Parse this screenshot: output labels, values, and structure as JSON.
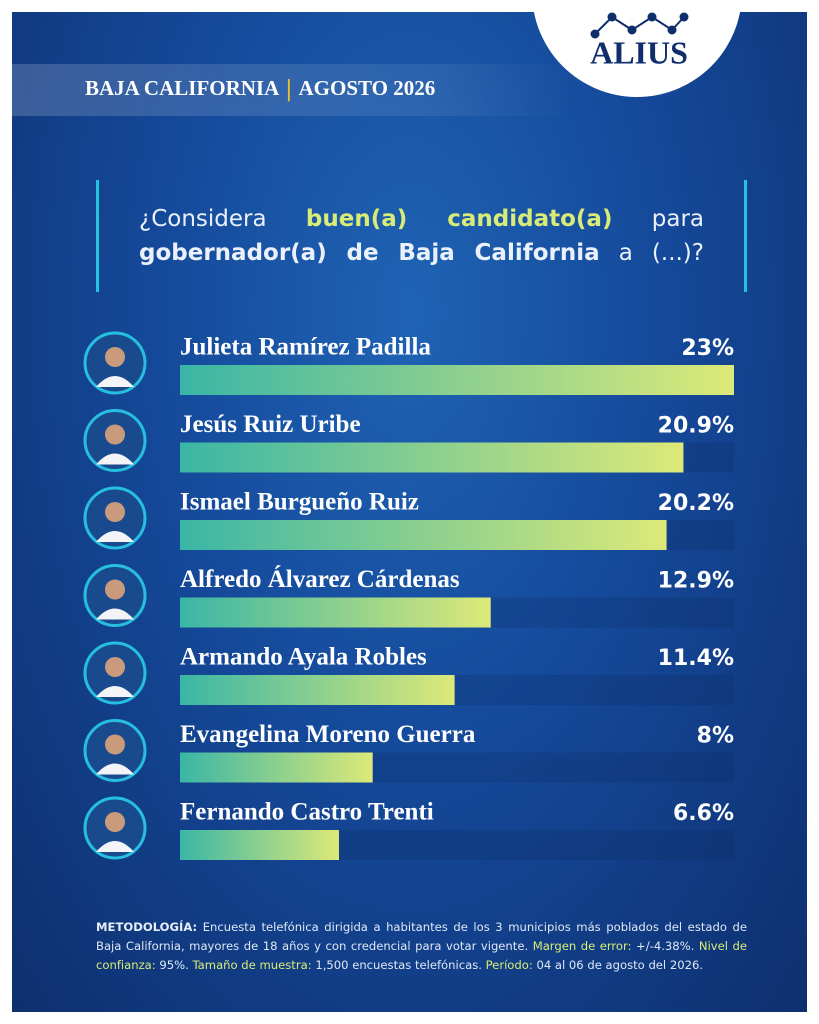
{
  "header": {
    "region": "BAJA CALIFORNIA",
    "date": "AGOSTO 2026"
  },
  "logo": "ALIUS",
  "question": {
    "before": "¿Considera",
    "highlight": "buen(a) candidato(a)",
    "after_bold": "para",
    "after": "gobernador(a) de Baja California",
    "end": "a (...)?"
  },
  "chart_data": {
    "type": "bar",
    "orientation": "horizontal",
    "categories": [
      "Julieta Ramírez Padilla",
      "Jesús Ruiz Uribe",
      "Ismael Burgueño Ruiz",
      "Alfredo Álvarez Cárdenas",
      "Armando Ayala Robles",
      "Evangelina Moreno Guerra",
      "Fernando Castro Trenti"
    ],
    "values": [
      23,
      20.9,
      20.2,
      12.9,
      11.4,
      8,
      6.6
    ],
    "value_labels": [
      "23%",
      "20.9%",
      "20.2%",
      "12.9%",
      "11.4%",
      "8%",
      "6.6%"
    ],
    "color": [
      "#3ab6a6",
      "#dde978"
    ]
  },
  "methodology": [
    {
      "label": "METODOLOGÍA:",
      "text": "Encuesta telefónica dirigida a habitantes de los 3 municipios más poblados del estado de Baja California, mayores de 18 años y con credencial para votar vigente."
    },
    {
      "label": "Margen de error:",
      "text": "+/-4.38%."
    },
    {
      "label": "Nivel de confianza:",
      "text": "95%."
    },
    {
      "label": "Tamaño de muestra:",
      "text": "1,500 encuestas telefónicas."
    },
    {
      "label": "Período:",
      "text": "04 al 06 de agosto del 2026."
    }
  ]
}
